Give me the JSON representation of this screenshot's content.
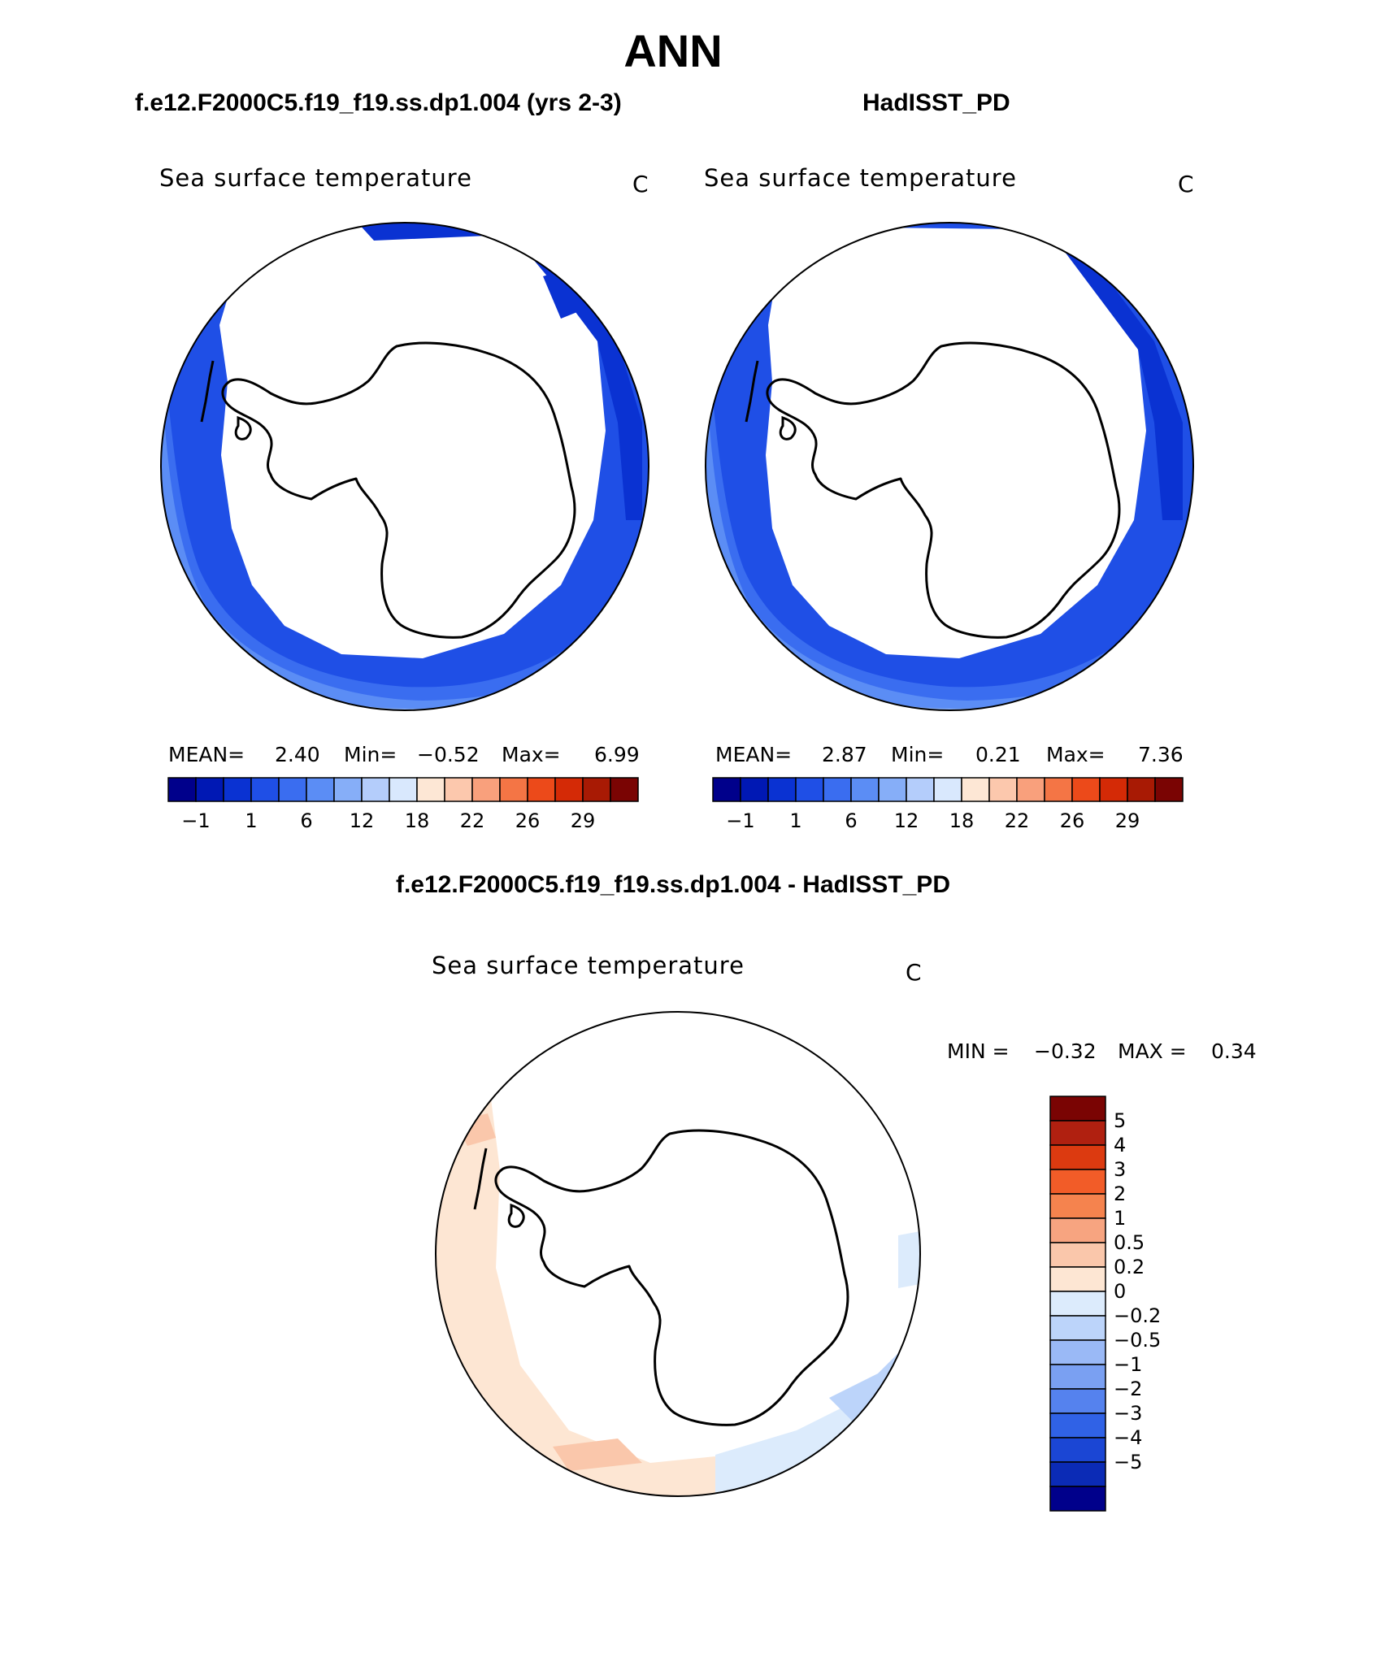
{
  "title": "ANN",
  "panels": [
    {
      "case": "f.e12.F2000C5.f19_f19.ss.dp1.004 (yrs 2-3)",
      "variable": "Sea surface temperature",
      "units": "C",
      "stats": {
        "mean_label": "MEAN=",
        "mean": "2.40",
        "min_label": "Min=",
        "min": "−0.52",
        "max_label": "Max=",
        "max": "6.99"
      }
    },
    {
      "case": "HadISST_PD",
      "variable": "Sea surface temperature",
      "units": "C",
      "stats": {
        "mean_label": "MEAN=",
        "mean": "2.87",
        "min_label": "Min=",
        "min": "0.21",
        "max_label": "Max=",
        "max": "7.36"
      }
    }
  ],
  "abs_colorbar": {
    "colors": [
      "#00008b",
      "#0018b4",
      "#0a32d2",
      "#1f4fe6",
      "#3a6df0",
      "#5b8df5",
      "#86aef8",
      "#b4cdfb",
      "#d9e8fd",
      "#fde7d5",
      "#fcc8ad",
      "#f9a07c",
      "#f47545",
      "#ec4a1a",
      "#d42a06",
      "#a81a04",
      "#7a0403"
    ],
    "ticks": [
      "−1",
      "1",
      "6",
      "12",
      "18",
      "22",
      "26",
      "29"
    ]
  },
  "difference": {
    "title": "f.e12.F2000C5.f19_f19.ss.dp1.004 - HadISST_PD",
    "variable": "Sea surface temperature",
    "units": "C",
    "min_label": "MIN =",
    "min": "−0.32",
    "max_label": "MAX =",
    "max": "0.34",
    "colorbar": {
      "colors_top_to_bottom": [
        "#7a0403",
        "#b02010",
        "#dc3a10",
        "#f25c28",
        "#f5834e",
        "#f7a480",
        "#fac7ab",
        "#fde6d3",
        "#dcebfc",
        "#bcd4fa",
        "#9ab9f6",
        "#7aa0f2",
        "#5582ee",
        "#3062e6",
        "#1b46d4",
        "#0b2bb6",
        "#00008b"
      ],
      "labels": [
        "5",
        "4",
        "3",
        "2",
        "1",
        "0.5",
        "0.2",
        "0",
        "−0.2",
        "−0.5",
        "−1",
        "−2",
        "−3",
        "−4",
        "−5"
      ]
    }
  }
}
